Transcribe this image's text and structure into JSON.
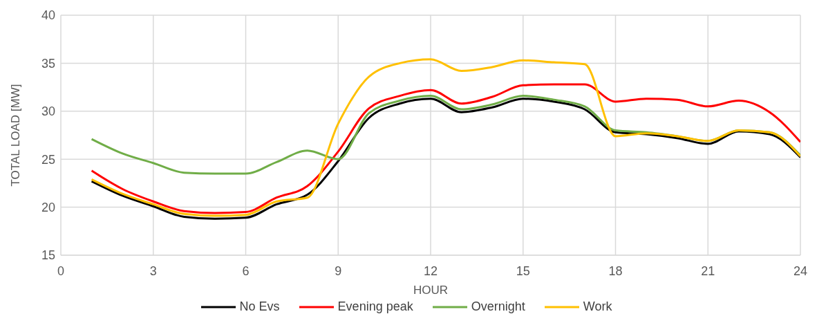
{
  "chart_data": {
    "type": "line",
    "xlabel": "HOUR",
    "ylabel": "TOTAL LOAD [MW]",
    "x": [
      1,
      2,
      3,
      4,
      5,
      6,
      7,
      8,
      9,
      10,
      11,
      12,
      13,
      14,
      15,
      16,
      17,
      18,
      19,
      20,
      21,
      22,
      23,
      24
    ],
    "series": [
      {
        "name": "No Evs",
        "color": "#000000",
        "values": [
          22.7,
          21.2,
          20.1,
          19.0,
          18.8,
          18.9,
          20.3,
          21.3,
          24.8,
          29.3,
          30.8,
          31.3,
          29.9,
          30.4,
          31.3,
          31.0,
          30.2,
          27.8,
          27.6,
          27.2,
          26.6,
          27.9,
          27.6,
          25.2
        ]
      },
      {
        "name": "Evening peak",
        "color": "#ff0000",
        "values": [
          23.8,
          21.9,
          20.6,
          19.6,
          19.4,
          19.5,
          21.0,
          22.2,
          25.8,
          30.3,
          31.6,
          32.2,
          30.8,
          31.5,
          32.7,
          32.8,
          32.8,
          31.0,
          31.3,
          31.2,
          30.5,
          31.1,
          29.9,
          26.8
        ]
      },
      {
        "name": "Overnight",
        "color": "#70ad47",
        "values": [
          27.1,
          25.6,
          24.6,
          23.6,
          23.5,
          23.5,
          24.7,
          25.9,
          25.0,
          29.8,
          31.1,
          31.6,
          30.2,
          30.7,
          31.6,
          31.2,
          30.5,
          28.0,
          27.8,
          27.4,
          26.9,
          28.0,
          27.8,
          25.4
        ]
      },
      {
        "name": "Work",
        "color": "#ffc000",
        "values": [
          22.9,
          21.4,
          20.3,
          19.3,
          19.1,
          19.2,
          20.6,
          21.0,
          28.7,
          33.6,
          35.0,
          35.4,
          34.2,
          34.6,
          35.3,
          35.1,
          34.9,
          27.4,
          27.7,
          27.4,
          26.9,
          28.0,
          27.8,
          25.3
        ]
      }
    ],
    "xlim": [
      0,
      24
    ],
    "xticks": [
      0,
      3,
      6,
      9,
      12,
      15,
      18,
      21,
      24
    ],
    "ylim": [
      15,
      40
    ],
    "yticks": [
      15,
      20,
      25,
      30,
      35,
      40
    ],
    "grid": true,
    "legend": "bottom",
    "marker": "none",
    "line_style": "solid"
  }
}
